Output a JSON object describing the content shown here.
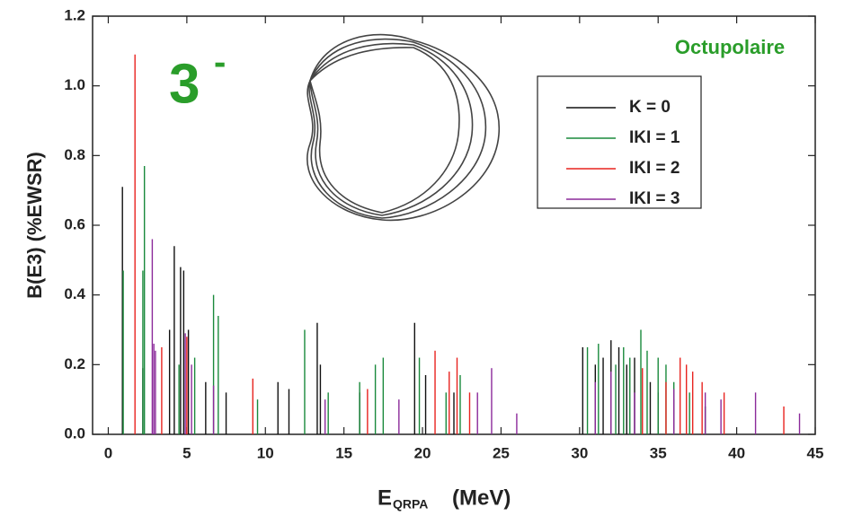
{
  "chart_data": {
    "type": "stick",
    "y_label": "B(E3)  (%EWSR)",
    "x_label": "E",
    "x_label_sub": "QRPA",
    "x_label_unit": "(MeV)",
    "annotation": "Octupolaire",
    "big_label": "3",
    "big_label_sup": "-",
    "xlim": [
      -1,
      45
    ],
    "ylim": [
      0,
      1.2
    ],
    "xticks": [
      0,
      5,
      10,
      15,
      20,
      25,
      30,
      35,
      40,
      45
    ],
    "yticks": [
      {
        "value": 0,
        "label": "0.0"
      },
      0.2,
      0.4,
      0.6,
      0.8,
      {
        "value": 1,
        "label": "1.0"
      },
      1.2
    ],
    "series": [
      {
        "name": "K = 0",
        "color": "#111111",
        "x": [
          0.9,
          2.2,
          3.9,
          4.2,
          4.6,
          4.8,
          5.1,
          6.2,
          7.5,
          10.8,
          11.5,
          13.3,
          13.5,
          16,
          19.5,
          20.2,
          22,
          30.2,
          31,
          31.5,
          32,
          32.5,
          33,
          33.5,
          34.5,
          35,
          36,
          38
        ],
        "values": [
          0.71,
          0.19,
          0.3,
          0.54,
          0.48,
          0.47,
          0.3,
          0.15,
          0.12,
          0.15,
          0.13,
          0.32,
          0.2,
          0.12,
          0.32,
          0.17,
          0.12,
          0.25,
          0.2,
          0.22,
          0.27,
          0.25,
          0.2,
          0.22,
          0.15,
          0.12,
          0.1,
          0.08
        ]
      },
      {
        "name": "IKI = 1",
        "color": "#1a8a3c",
        "x": [
          0.95,
          2.2,
          2.3,
          4.5,
          5.5,
          6.7,
          7,
          9.5,
          12.5,
          14,
          16,
          17,
          17.5,
          19.8,
          21.5,
          22.4,
          30.5,
          31.2,
          32.3,
          32.8,
          33.2,
          33.9,
          34.3,
          35,
          35.5,
          36,
          37,
          38
        ],
        "values": [
          0.47,
          0.47,
          0.77,
          0.2,
          0.22,
          0.4,
          0.34,
          0.1,
          0.3,
          0.12,
          0.15,
          0.2,
          0.22,
          0.22,
          0.12,
          0.17,
          0.25,
          0.26,
          0.2,
          0.25,
          0.22,
          0.3,
          0.24,
          0.22,
          0.2,
          0.15,
          0.12,
          0.08
        ]
      },
      {
        "name": "IKI = 2",
        "color": "#e8231f",
        "x": [
          1.7,
          3.4,
          5.0,
          9.2,
          16.5,
          20.8,
          21.7,
          22.2,
          23,
          34,
          35.5,
          36.4,
          36.8,
          37.2,
          37.8,
          39.2,
          43
        ],
        "values": [
          1.09,
          0.25,
          0.28,
          0.16,
          0.13,
          0.24,
          0.18,
          0.22,
          0.12,
          0.19,
          0.15,
          0.22,
          0.2,
          0.18,
          0.15,
          0.12,
          0.08
        ]
      },
      {
        "name": "IKI = 3",
        "color": "#8b2a9a",
        "x": [
          2.8,
          2.9,
          3.0,
          4.9,
          5.3,
          6.7,
          13.8,
          18.5,
          23.5,
          24.4,
          26,
          31,
          32,
          33.5,
          36,
          38,
          39,
          41.2,
          44
        ],
        "values": [
          0.56,
          0.26,
          0.24,
          0.29,
          0.2,
          0.14,
          0.1,
          0.1,
          0.12,
          0.19,
          0.06,
          0.15,
          0.18,
          0.12,
          0.13,
          0.12,
          0.1,
          0.12,
          0.06
        ]
      }
    ]
  }
}
